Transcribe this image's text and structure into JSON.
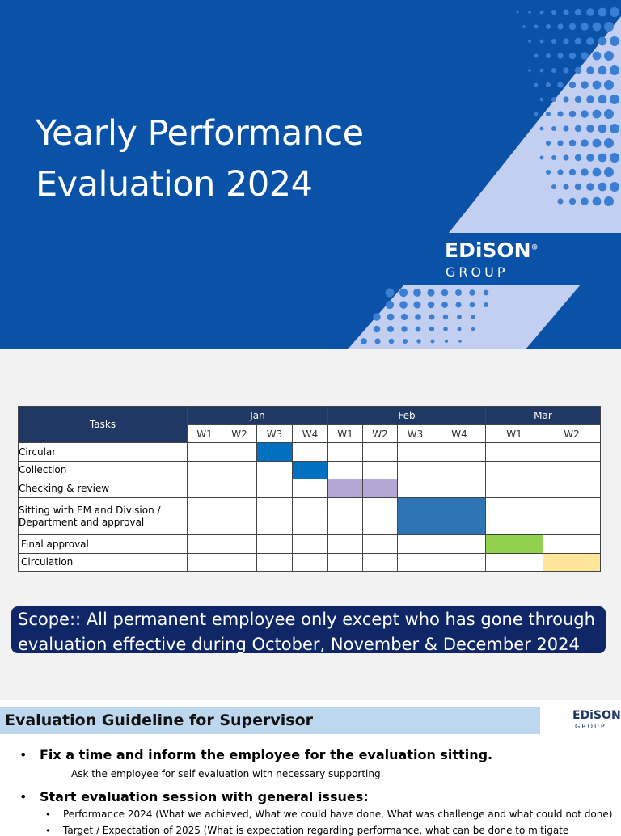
{
  "slide1": {
    "title_lines": [
      "Yearly Performance",
      "Evaluation 2024"
    ],
    "logo": {
      "name": "EDiSON",
      "mark": "®",
      "sub": "GROUP"
    }
  },
  "table": {
    "tasks_header": "Tasks",
    "months": [
      {
        "name": "Jan",
        "weeks": [
          "W1",
          "W2",
          "W3",
          "W4"
        ]
      },
      {
        "name": "Feb",
        "weeks": [
          "W1",
          "W2",
          "W3",
          "W4"
        ]
      },
      {
        "name": "Mar",
        "weeks": [
          "W1",
          "W2"
        ]
      }
    ],
    "rows": [
      {
        "task": "Circular",
        "weeks": [
          2
        ],
        "color": "#0070c0"
      },
      {
        "task": "Collection",
        "weeks": [
          3
        ],
        "color": "#0070c0"
      },
      {
        "task": "Checking  & review",
        "weeks": [
          4,
          5
        ],
        "color": "#b4a7d6"
      },
      {
        "task": "Sitting with EM and Division / Department and approval",
        "weeks": [
          6,
          7
        ],
        "color": "#2e75b6"
      },
      {
        "task": "Final approval",
        "weeks": [
          8
        ],
        "color": "#92d050"
      },
      {
        "task": "Circulation",
        "weeks": [
          9
        ],
        "color": "#ffe699"
      }
    ]
  },
  "scope": "Scope:: All permanent employee only except who has gone through evaluation effective during October, November & December 2024",
  "slide2": {
    "heading": "Evaluation Guideline for Supervisor",
    "logo": {
      "name": "EDiSON",
      "sub": "GROUP"
    },
    "bullets": [
      {
        "text": "Fix a time and inform the employee for the evaluation sitting.",
        "sub": [
          "Ask the employee for self evaluation with necessary supporting."
        ]
      },
      {
        "text": "Start evaluation session with general issues:",
        "sub": [
          "Performance 2024 (What we achieved, What we could have done, What was challenge and what could not done)",
          "Target / Expectation of 2025 (What is expectation regarding performance, what can be done to mitigate"
        ]
      }
    ]
  }
}
